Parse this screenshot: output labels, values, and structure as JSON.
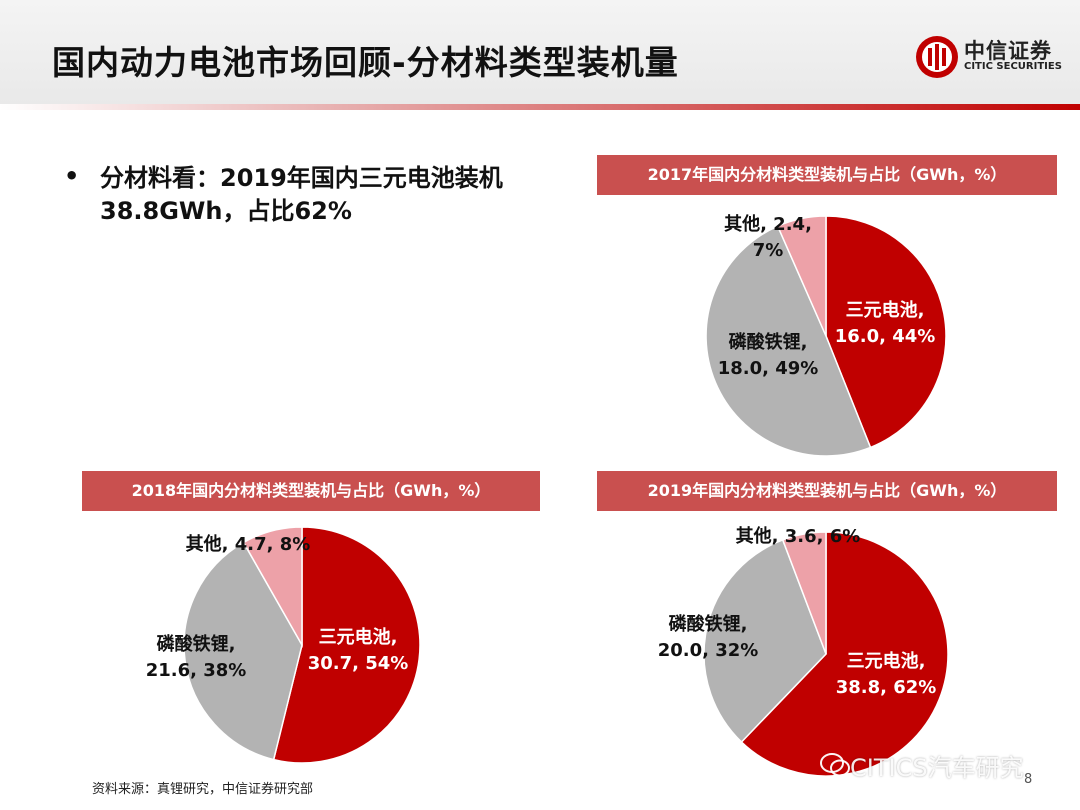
{
  "header": {
    "title": "国内动力电池市场回顾-分材料类型装机量"
  },
  "logo": {
    "name_cn": "中信证券",
    "name_en": "CITIC SECURITIES"
  },
  "bullet": {
    "marker": "•",
    "text": "分材料看：2019年国内三元电池装机38.8GWh，占比62%"
  },
  "colors": {
    "ternary": "#c00000",
    "lfp": "#b3b3b3",
    "other": "#eda1a8",
    "title_bar": "#c9504f"
  },
  "chart_data": [
    {
      "type": "pie",
      "title": "2017年国内分材料类型装机与占比（GWh，%）",
      "slices": [
        {
          "label": "三元电池",
          "value": 16.0,
          "percent": "44%"
        },
        {
          "label": "磷酸铁锂",
          "value": 18.0,
          "percent": "49%"
        },
        {
          "label": "其他",
          "value": 2.4,
          "percent": "7%"
        }
      ]
    },
    {
      "type": "pie",
      "title": "2018年国内分材料类型装机与占比（GWh，%）",
      "slices": [
        {
          "label": "三元电池",
          "value": 30.7,
          "percent": "54%"
        },
        {
          "label": "磷酸铁锂",
          "value": 21.6,
          "percent": "38%"
        },
        {
          "label": "其他",
          "value": 4.7,
          "percent": "8%"
        }
      ]
    },
    {
      "type": "pie",
      "title": "2019年国内分材料类型装机与占比（GWh，%）",
      "slices": [
        {
          "label": "三元电池",
          "value": 38.8,
          "percent": "62%"
        },
        {
          "label": "磷酸铁锂",
          "value": 20.0,
          "percent": "32%"
        },
        {
          "label": "其他",
          "value": 3.6,
          "percent": "6%"
        }
      ]
    }
  ],
  "footer": {
    "source": "资料来源：真锂研究，中信证券研究部",
    "page_number": "8",
    "watermark": "CITICS汽车研究"
  }
}
